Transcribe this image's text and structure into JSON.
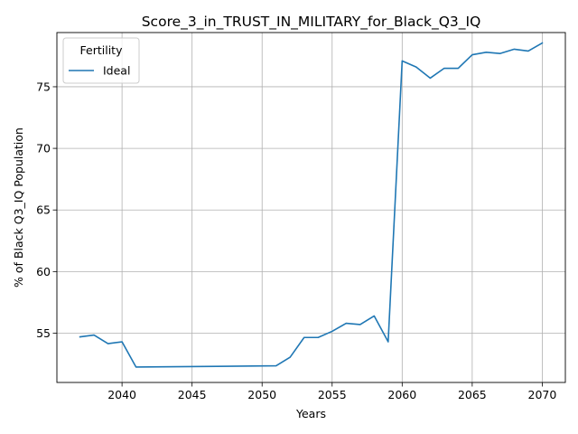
{
  "chart_data": {
    "type": "line",
    "title": "Score_3_in_TRUST_IN_MILITARY_for_Black_Q3_IQ",
    "xlabel": "Years",
    "ylabel": "% of Black Q3_IQ Population",
    "xlim": [
      2035.35,
      2071.65
    ],
    "ylim": [
      51.0,
      79.4
    ],
    "xticks": [
      2040,
      2045,
      2050,
      2055,
      2060,
      2065,
      2070
    ],
    "yticks": [
      55,
      60,
      65,
      70,
      75
    ],
    "grid": true,
    "legend": {
      "title": "Fertility",
      "placement": "top-left"
    },
    "series": [
      {
        "name": "Ideal",
        "color": "#1f77b4",
        "x": [
          2037,
          2038,
          2039,
          2040,
          2041,
          2051,
          2052,
          2053,
          2054,
          2055,
          2056,
          2057,
          2058,
          2059,
          2060,
          2061,
          2062,
          2063,
          2064,
          2065,
          2066,
          2067,
          2068,
          2069,
          2070
        ],
        "y": [
          54.7,
          54.85,
          54.15,
          54.3,
          52.25,
          52.35,
          53.05,
          54.65,
          54.65,
          55.15,
          55.8,
          55.7,
          56.4,
          54.3,
          77.1,
          76.6,
          75.7,
          76.5,
          76.5,
          77.6,
          77.8,
          77.7,
          78.05,
          77.9,
          78.55
        ]
      }
    ]
  }
}
